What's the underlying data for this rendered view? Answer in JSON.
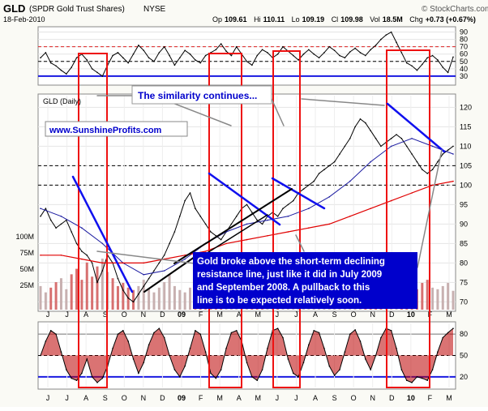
{
  "header": {
    "symbol": "GLD",
    "name": "(SPDR Gold Trust Shares)",
    "exchange": "NYSE",
    "watermark": "© StockCharts.com",
    "date": "18-Feb-2010",
    "quote": {
      "op_label": "Op",
      "op": "109.61",
      "hi_label": "Hi",
      "hi": "110.11",
      "lo_label": "Lo",
      "lo": "109.19",
      "cl_label": "Cl",
      "cl": "109.98",
      "vol_label": "Vol",
      "vol": "18.5M",
      "chg_label": "Chg",
      "chg": "+0.73 (+0.67%)"
    }
  },
  "main_label": "GLD (Daily)",
  "annotations": {
    "similarity": "The similarity continues...",
    "website": "www.SunshineProfits.com",
    "breakout": [
      "Gold broke above the short-term declining",
      "resistance line, just like it did in July 2009",
      "and September 2008. A pullback to this",
      "line is to be expected relatively soon."
    ]
  },
  "colors": {
    "price": "#000000",
    "ma50": "#1a1aa0",
    "ma200": "#e00000",
    "trendline_blue": "#1010ee",
    "highlight_box": "#ee1111",
    "callout_box": "#0000cc",
    "similarity_text": "#0000cc",
    "volume_up": "#c8b0b0",
    "volume_down": "#d77070",
    "indicator_line": "#000000",
    "indicator_fill": "#bb0000"
  },
  "chart_data": [
    {
      "type": "line",
      "panel": "top-indicator",
      "yticks": [
        30,
        40,
        50,
        60,
        70,
        80,
        90
      ],
      "ylim": [
        20,
        95
      ],
      "reference_lines": [
        {
          "value": 70,
          "style": "dashed-red"
        },
        {
          "value": 50,
          "style": "dashed"
        },
        {
          "value": 30,
          "style": "solid-blue"
        }
      ],
      "series": [
        {
          "x": [
            0,
            5,
            10,
            15,
            20,
            25,
            30,
            35,
            40,
            45,
            50,
            55,
            60,
            65,
            70,
            75,
            80,
            85,
            90,
            95,
            100,
            105,
            110,
            115,
            120,
            125,
            130,
            135,
            140,
            145,
            150,
            155,
            160,
            165,
            170,
            175,
            180,
            185,
            190,
            195,
            200,
            205,
            210,
            215,
            220,
            225,
            230,
            235,
            240,
            245,
            250,
            255,
            260,
            265,
            270,
            275,
            280,
            285,
            290,
            295,
            300,
            305,
            310,
            315,
            320,
            325,
            330,
            335,
            340,
            345,
            350,
            355,
            360,
            365,
            370,
            375,
            380,
            385,
            390,
            395,
            400
          ],
          "values": [
            55,
            62,
            48,
            44,
            38,
            33,
            42,
            55,
            60,
            52,
            40,
            35,
            30,
            45,
            58,
            62,
            55,
            48,
            60,
            72,
            65,
            55,
            50,
            62,
            70,
            58,
            45,
            55,
            65,
            60,
            52,
            48,
            58,
            62,
            66,
            74,
            64,
            58,
            70,
            60,
            50,
            45,
            58,
            66,
            62,
            55,
            60,
            70,
            64,
            58,
            52,
            60,
            66,
            60,
            55,
            62,
            70,
            65,
            58,
            55,
            63,
            68,
            62,
            58,
            66,
            72,
            80,
            86,
            90,
            76,
            62,
            48,
            44,
            38,
            46,
            55,
            58,
            52,
            42,
            35,
            56
          ]
        }
      ]
    },
    {
      "type": "line",
      "panel": "price",
      "title": "GLD (Daily)",
      "yticks": [
        70,
        75,
        80,
        85,
        90,
        95,
        100,
        105,
        110,
        115,
        120
      ],
      "ylim": [
        68,
        123
      ],
      "reference_lines": [
        {
          "value": 100,
          "style": "dashed"
        },
        {
          "value": 105,
          "style": "dashed"
        }
      ],
      "x_ticks": [
        "J",
        "J",
        "A",
        "S",
        "O",
        "N",
        "D",
        "09",
        "F",
        "M",
        "A",
        "M",
        "J",
        "J",
        "A",
        "S",
        "O",
        "N",
        "D",
        "10",
        "F",
        "M"
      ],
      "series": [
        {
          "x": [
            0,
            5,
            10,
            15,
            20,
            25,
            30,
            35,
            40,
            45,
            50,
            55,
            60,
            65,
            70,
            75,
            80,
            85,
            90,
            95,
            100,
            105,
            110,
            115,
            120,
            125,
            130,
            135,
            140,
            145,
            150,
            155,
            160,
            165,
            170,
            175,
            180,
            185,
            190,
            195,
            200,
            205,
            210,
            215,
            220,
            225,
            230,
            235,
            240,
            245,
            250,
            255,
            260,
            265,
            270,
            275,
            280,
            285,
            290,
            295,
            300,
            305,
            310,
            315,
            320,
            325,
            330,
            335,
            340,
            345,
            350,
            355,
            360,
            365,
            370,
            375,
            380,
            385,
            390,
            395,
            400
          ],
          "values": [
            92,
            94,
            91,
            89,
            90,
            91,
            88,
            85,
            83,
            82,
            80,
            75,
            78,
            82,
            80,
            76,
            73,
            71,
            70,
            72,
            74,
            76,
            78,
            80,
            82,
            85,
            88,
            92,
            96,
            98,
            94,
            92,
            90,
            88,
            87,
            86,
            88,
            90,
            92,
            94,
            95,
            93,
            91,
            90,
            92,
            93,
            92,
            94,
            95,
            96,
            98,
            99,
            100,
            101,
            103,
            104,
            105,
            106,
            108,
            110,
            112,
            115,
            117,
            116,
            114,
            112,
            110,
            111,
            112,
            113,
            112,
            110,
            108,
            106,
            104,
            103,
            104,
            106,
            108,
            109,
            110
          ]
        },
        {
          "x": [
            0,
            20,
            40,
            60,
            80,
            100,
            120,
            140,
            160,
            180,
            200,
            220,
            240,
            260,
            280,
            300,
            320,
            340,
            360,
            380,
            400
          ],
          "values": [
            94,
            92,
            89,
            85,
            80,
            77,
            78,
            81,
            85,
            88,
            90,
            91,
            92,
            94,
            97,
            101,
            106,
            110,
            112,
            110,
            108
          ]
        },
        {
          "x": [
            0,
            20,
            40,
            60,
            80,
            100,
            120,
            140,
            160,
            180,
            200,
            220,
            240,
            260,
            280,
            300,
            320,
            340,
            360,
            380,
            400
          ],
          "values": [
            82,
            82,
            81,
            80,
            80,
            80,
            81,
            82,
            83,
            85,
            86,
            87,
            88,
            89,
            90,
            92,
            94,
            96,
            98,
            100,
            101
          ]
        }
      ],
      "volume_axis": {
        "ticks": [
          "25M",
          "50M",
          "75M",
          "100M"
        ]
      },
      "volume": [
        30,
        22,
        28,
        35,
        40,
        26,
        45,
        52,
        38,
        60,
        42,
        55,
        65,
        48,
        40,
        30,
        34,
        28,
        25,
        30,
        38,
        26,
        22,
        28,
        35,
        45,
        30,
        25,
        22,
        28,
        32,
        24,
        20,
        26,
        30,
        22,
        18,
        24,
        28,
        20,
        26,
        22,
        18,
        24,
        30,
        22,
        20,
        26,
        22,
        18,
        24,
        28,
        22,
        26,
        30,
        24,
        28,
        34,
        30,
        26,
        32,
        28,
        36,
        30,
        26,
        30,
        38,
        34,
        28,
        32,
        36,
        40,
        30,
        26,
        34,
        38,
        28,
        26,
        30,
        34,
        24
      ]
    },
    {
      "type": "line",
      "panel": "bottom-indicator",
      "yticks": [
        20,
        50,
        80
      ],
      "ylim": [
        5,
        95
      ],
      "reference_lines": [
        {
          "value": 80,
          "style": "solid"
        },
        {
          "value": 50,
          "style": "dashed"
        },
        {
          "value": 20,
          "style": "solid-blue"
        }
      ],
      "x_ticks": [
        "J",
        "J",
        "A",
        "S",
        "O",
        "N",
        "D",
        "09",
        "F",
        "M",
        "A",
        "M",
        "J",
        "J",
        "A",
        "S",
        "O",
        "N",
        "D",
        "10",
        "F",
        "M"
      ],
      "series": [
        {
          "x": [
            0,
            5,
            10,
            15,
            20,
            25,
            30,
            35,
            40,
            45,
            50,
            55,
            60,
            65,
            70,
            75,
            80,
            85,
            90,
            95,
            100,
            105,
            110,
            115,
            120,
            125,
            130,
            135,
            140,
            145,
            150,
            155,
            160,
            165,
            170,
            175,
            180,
            185,
            190,
            195,
            200,
            205,
            210,
            215,
            220,
            225,
            230,
            235,
            240,
            245,
            250,
            255,
            260,
            265,
            270,
            275,
            280,
            285,
            290,
            295,
            300,
            305,
            310,
            315,
            320,
            325,
            330,
            335,
            340,
            345,
            350,
            355,
            360,
            365,
            370,
            375,
            380,
            385,
            390,
            395,
            400
          ],
          "values": [
            50,
            70,
            85,
            80,
            55,
            30,
            18,
            15,
            25,
            45,
            20,
            12,
            18,
            35,
            60,
            80,
            85,
            70,
            45,
            25,
            40,
            65,
            82,
            88,
            75,
            50,
            30,
            20,
            35,
            60,
            85,
            80,
            55,
            25,
            18,
            30,
            60,
            82,
            85,
            70,
            40,
            20,
            15,
            30,
            60,
            85,
            88,
            75,
            45,
            25,
            20,
            40,
            65,
            85,
            82,
            60,
            35,
            22,
            30,
            55,
            80,
            86,
            70,
            45,
            30,
            50,
            75,
            88,
            85,
            60,
            30,
            15,
            12,
            20,
            18,
            15,
            30,
            55,
            75,
            82,
            88
          ]
        }
      ]
    }
  ]
}
